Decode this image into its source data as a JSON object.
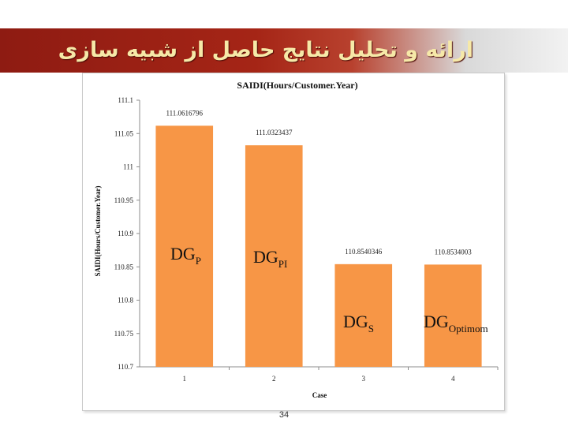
{
  "slide": {
    "title": "ارائه و تحلیل نتایج حاصل از شبیه سازی",
    "page_number": "34",
    "colors": {
      "banner": "#a52516",
      "title_text": "#f6e9a8",
      "bar": "#f79646"
    }
  },
  "chart_data": {
    "type": "bar",
    "title": "SAIDI(Hours/Customer.Year)",
    "xlabel": "Case",
    "ylabel": "SAIDI(Hours/Customer.Year)",
    "categories": [
      "1",
      "2",
      "3",
      "4"
    ],
    "values": [
      111.0616796,
      111.0323437,
      110.8540346,
      110.8534003
    ],
    "data_labels": [
      "111.0616796",
      "111.0323437",
      "110.8540346",
      "110.8534003"
    ],
    "ylim": [
      110.7,
      111.1
    ],
    "yticks": [
      110.7,
      110.75,
      110.8,
      110.85,
      110.9,
      110.95,
      111,
      111.05,
      111.1
    ],
    "ytick_labels": [
      "110.7",
      "110.75",
      "110.8",
      "110.85",
      "110.9",
      "110.95",
      "111",
      "111.05",
      "111.1"
    ],
    "grid": false,
    "bar_color": "#f79646",
    "annotations": [
      {
        "base": "DG",
        "sub": "P"
      },
      {
        "base": "DG",
        "sub": "PI"
      },
      {
        "base": "DG",
        "sub": "S"
      },
      {
        "base": "DG",
        "sub": "Optimom"
      }
    ]
  }
}
